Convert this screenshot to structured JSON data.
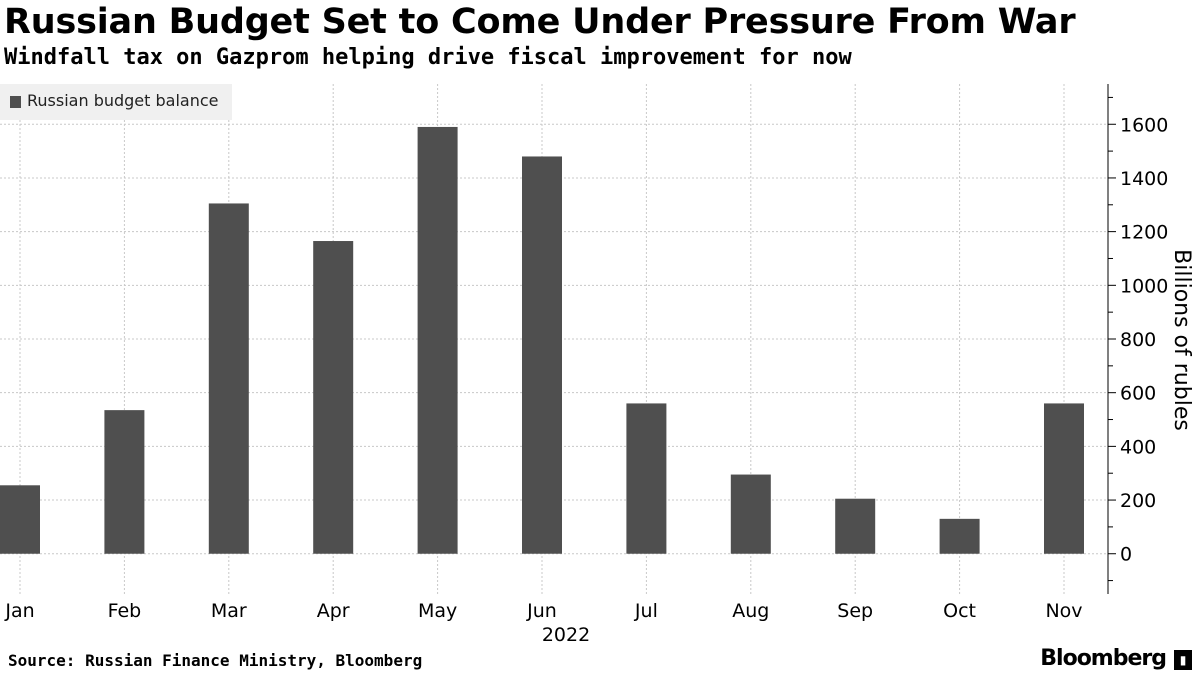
{
  "header": {
    "title": "Russian Budget Set to Come Under Pressure From War",
    "subtitle": "Windfall tax on Gazprom helping drive fiscal improvement for now"
  },
  "legend": {
    "label": "Russian budget balance"
  },
  "footer": {
    "source": "Source: Russian Finance Ministry, Bloomberg",
    "brand": "Bloomberg",
    "brand_icon": "bloomberg-terminal-icon"
  },
  "colors": {
    "bar": "#4f4f4f",
    "grid": "#c8c8c8",
    "legend_bg": "#f0f0f0"
  },
  "chart_data": {
    "type": "bar",
    "categories": [
      "Jan",
      "Feb",
      "Mar",
      "Apr",
      "May",
      "Jun",
      "Jul",
      "Aug",
      "Sep",
      "Oct",
      "Nov"
    ],
    "x_sublabel": "2022",
    "series": [
      {
        "name": "Russian budget balance",
        "values": [
          255,
          535,
          1305,
          1165,
          1590,
          1480,
          560,
          295,
          205,
          130,
          560
        ]
      }
    ],
    "ylabel": "Billions of rubles",
    "ylim": [
      -150,
      1750
    ],
    "yticks": [
      0,
      200,
      400,
      600,
      800,
      1000,
      1200,
      1400,
      1600
    ],
    "y_axis_side": "right",
    "grid": true,
    "legend_position": "top-left"
  }
}
